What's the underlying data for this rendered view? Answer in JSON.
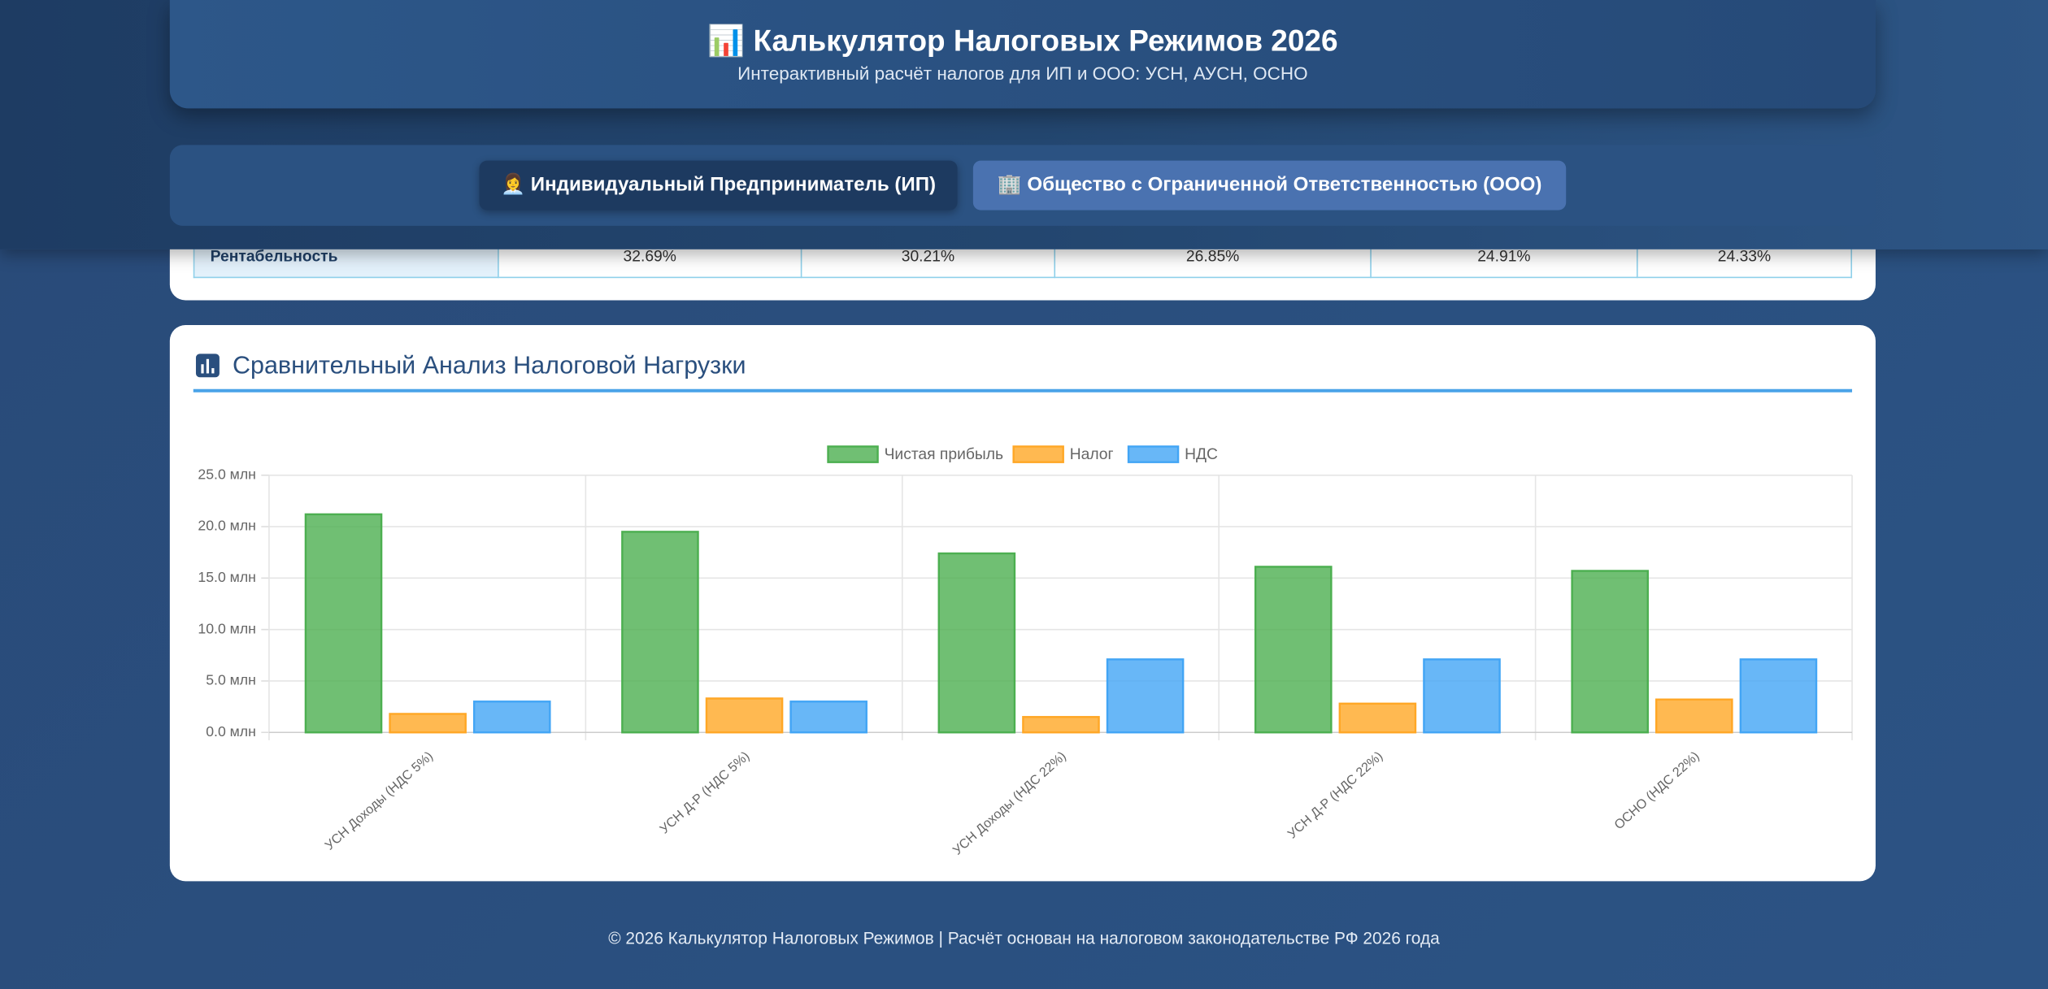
{
  "header": {
    "title": "📊 Калькулятор Налоговых Режимов 2026",
    "subtitle": "Интерактивный расчёт налогов для ИП и ООО: УСН, АУСН, ОСНО"
  },
  "tabs": [
    "👩‍💼 Индивидуальный Предприниматель (ИП)",
    "🏢 Общество с Ограниченной Ответственностью (ООО)"
  ],
  "table": {
    "rows": [
      [
        "Рентабельность",
        "32.69%",
        "30.21%",
        "26.85%",
        "24.91%",
        "24.33%"
      ]
    ]
  },
  "chart_data": {
    "type": "bar",
    "title": "Сравнительный Анализ Налоговой Нагрузки",
    "categories": [
      "УСН Доходы (НДС 5%)",
      "УСН Д-Р (НДС 5%)",
      "УСН Доходы (НДС 22%)",
      "УСН Д-Р (НДС 22%)",
      "ОСНО (НДС 22%)"
    ],
    "series": [
      {
        "name": "Чистая прибыль",
        "color": "#4caf50",
        "values": [
          21.2,
          19.5,
          17.4,
          16.1,
          15.7
        ]
      },
      {
        "name": "Налог",
        "color": "#ffa726",
        "values": [
          1.8,
          3.3,
          1.5,
          2.8,
          3.2
        ]
      },
      {
        "name": "НДС",
        "color": "#42a5f5",
        "values": [
          3.0,
          3.0,
          7.1,
          7.1,
          7.1
        ]
      }
    ],
    "ylim": [
      0,
      25
    ],
    "yticks": [
      {
        "value": 0,
        "label": "0.0 млн"
      },
      {
        "value": 5,
        "label": "5.0 млн"
      },
      {
        "value": 10,
        "label": "10.0 млн"
      },
      {
        "value": 15,
        "label": "15.0 млн"
      },
      {
        "value": 20,
        "label": "20.0 млн"
      },
      {
        "value": 25,
        "label": "25.0 млн"
      }
    ],
    "grid": true,
    "legend": "top"
  },
  "footer": "© 2026 Калькулятор Налоговых Режимов | Расчёт основан на налоговом законодательстве РФ 2026 года"
}
